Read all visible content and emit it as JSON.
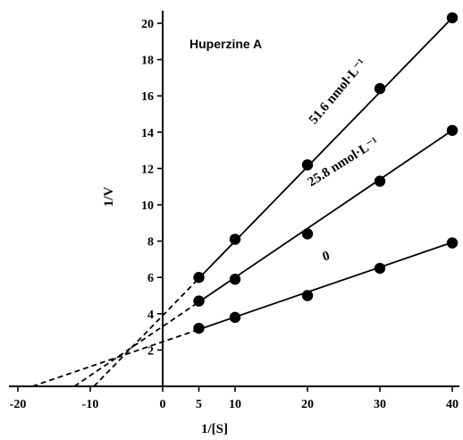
{
  "chart_data": {
    "type": "scatter",
    "title": "Huperzine A",
    "xlabel": "1/[S]",
    "ylabel": "1/V",
    "xlim": [
      -22,
      41
    ],
    "ylim": [
      0,
      21
    ],
    "x_ticks": [
      -20,
      -10,
      0,
      5,
      10,
      20,
      30,
      40
    ],
    "x_tick_labels": [
      "-20",
      "-10",
      "0",
      "5",
      "10",
      "20",
      "30",
      "40"
    ],
    "y_ticks": [
      2,
      4,
      6,
      8,
      10,
      12,
      14,
      16,
      18,
      20
    ],
    "y_tick_labels": [
      "2",
      "4",
      "6",
      "8",
      "10",
      "12",
      "14",
      "16",
      "18",
      "20"
    ],
    "grid": false,
    "legend": "none",
    "series": [
      {
        "name": "0",
        "x": [
          5,
          10,
          20,
          30,
          40
        ],
        "y": [
          3.2,
          3.8,
          5.0,
          6.5,
          7.9
        ],
        "fit": {
          "slope": 0.137,
          "intercept": 2.45
        },
        "x_intercept": -18
      },
      {
        "name": "25.8 nmol·L⁻¹",
        "x": [
          5,
          10,
          20,
          30,
          40
        ],
        "y": [
          4.7,
          5.9,
          8.4,
          11.3,
          14.1
        ],
        "fit": {
          "slope": 0.27,
          "intercept": 3.3
        },
        "x_intercept": -12.2
      },
      {
        "name": "51.6 nmol·L⁻¹",
        "x": [
          5,
          10,
          20,
          30,
          40
        ],
        "y": [
          6.0,
          8.1,
          12.2,
          16.4,
          20.3
        ],
        "fit": {
          "slope": 0.41,
          "intercept": 3.9
        },
        "x_intercept": -9.5
      }
    ]
  }
}
